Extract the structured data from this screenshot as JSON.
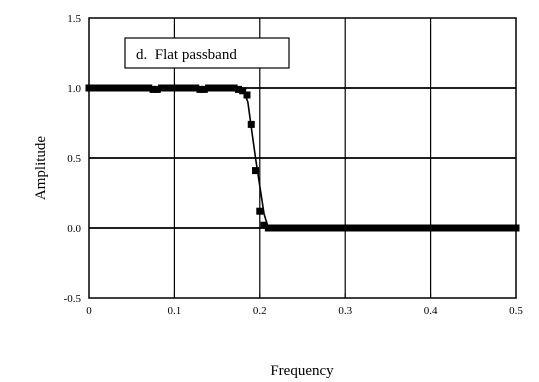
{
  "chart_data": {
    "type": "line",
    "title": "",
    "xlabel": "Frequency",
    "ylabel": "Amplitude",
    "xlim": [
      0,
      0.5
    ],
    "ylim": [
      -0.5,
      1.5
    ],
    "x_ticks": [
      0,
      0.1,
      0.2,
      0.3,
      0.4,
      0.5
    ],
    "x_tick_labels": [
      "0",
      "0.1",
      "0.2",
      "0.3",
      "0.4",
      "0.5"
    ],
    "y_ticks": [
      -0.5,
      0,
      0.5,
      1.0,
      1.5
    ],
    "y_tick_labels": [
      "-0.5",
      "0.0",
      "0.5",
      "1.0",
      "1.5"
    ],
    "grid": true,
    "annotation": "d.  Flat passband",
    "series": [
      {
        "line_points": [
          [
            0,
            1.0
          ],
          [
            0.17,
            1.0
          ],
          [
            0.181,
            0.98
          ],
          [
            0.186,
            0.9
          ],
          [
            0.19,
            0.72
          ],
          [
            0.195,
            0.5
          ],
          [
            0.2,
            0.3
          ],
          [
            0.205,
            0.1
          ],
          [
            0.21,
            0.0
          ],
          [
            0.5,
            0.0
          ]
        ],
        "markers_x": [
          0,
          0.005,
          0.01,
          0.015,
          0.02,
          0.025,
          0.03,
          0.035,
          0.04,
          0.045,
          0.05,
          0.055,
          0.06,
          0.065,
          0.07,
          0.075,
          0.08,
          0.085,
          0.09,
          0.095,
          0.1,
          0.105,
          0.11,
          0.115,
          0.12,
          0.125,
          0.13,
          0.135,
          0.14,
          0.145,
          0.15,
          0.155,
          0.16,
          0.165,
          0.17,
          0.175,
          0.18,
          0.185,
          0.19,
          0.195,
          0.2,
          0.205,
          0.21,
          0.215,
          0.22,
          0.225,
          0.23,
          0.235,
          0.24,
          0.245,
          0.25,
          0.255,
          0.26,
          0.265,
          0.27,
          0.275,
          0.28,
          0.285,
          0.29,
          0.295,
          0.3,
          0.305,
          0.31,
          0.315,
          0.32,
          0.325,
          0.33,
          0.335,
          0.34,
          0.345,
          0.35,
          0.355,
          0.36,
          0.365,
          0.37,
          0.375,
          0.38,
          0.385,
          0.39,
          0.395,
          0.4,
          0.405,
          0.41,
          0.415,
          0.42,
          0.425,
          0.43,
          0.435,
          0.44,
          0.445,
          0.45,
          0.455,
          0.46,
          0.465,
          0.47,
          0.475,
          0.48,
          0.485,
          0.49,
          0.495,
          0.5
        ],
        "markers_y": [
          1.0,
          1.0,
          1.0,
          1.0,
          1.0,
          1.0,
          1.0,
          1.0,
          1.0,
          1.0,
          1.0,
          1.0,
          1.0,
          1.0,
          1.0,
          0.99,
          0.99,
          1.0,
          1.0,
          1.0,
          1.0,
          1.0,
          1.0,
          1.0,
          1.0,
          1.0,
          0.99,
          0.99,
          1.0,
          1.0,
          1.0,
          1.0,
          1.0,
          1.0,
          1.0,
          0.99,
          0.98,
          0.95,
          0.74,
          0.41,
          0.12,
          0.02,
          0.0,
          0.0,
          0.0,
          0.0,
          0.0,
          0.0,
          0.0,
          0.0,
          0.0,
          0.0,
          0.0,
          0.0,
          0.0,
          0.0,
          0.0,
          0.0,
          0.0,
          0.0,
          0.0,
          0.0,
          0.0,
          0.0,
          0.0,
          0.0,
          0.0,
          0.0,
          0.0,
          0.0,
          0.0,
          0.0,
          0.0,
          0.0,
          0.0,
          0.0,
          0.0,
          0.0,
          0.0,
          0.0,
          0.0,
          0.0,
          0.0,
          0.0,
          0.0,
          0.0,
          0.0,
          0.0,
          0.0,
          0.0,
          0.0,
          0.0,
          0.0,
          0.0,
          0.0,
          0.0,
          0.0,
          0.0,
          0.0,
          0.0,
          0.0
        ]
      }
    ]
  }
}
